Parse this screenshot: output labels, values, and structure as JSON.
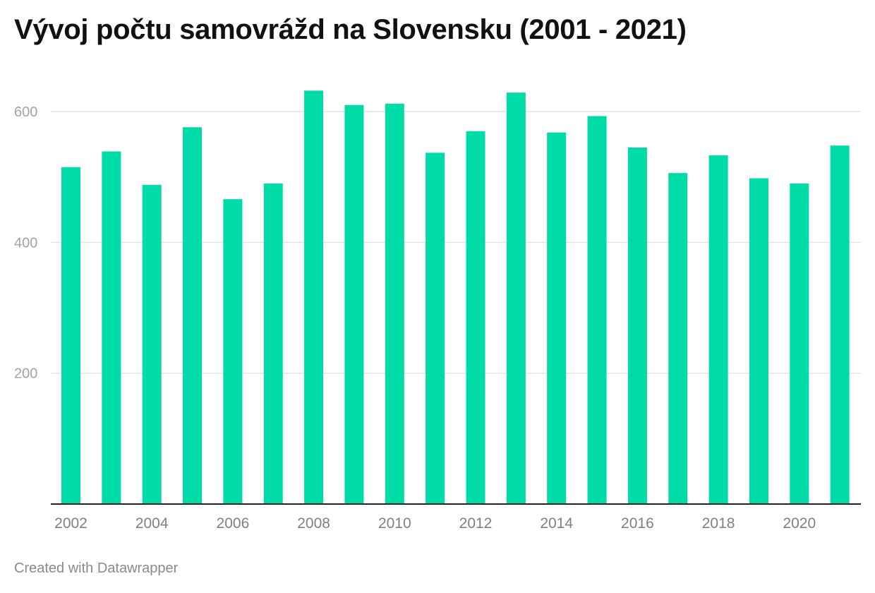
{
  "title": "Vývoj počtu samovrážd na Slovensku (2001 - 2021)",
  "footer": "Created with Datawrapper",
  "colors": {
    "bar": "#00dba7",
    "grid": "#e4e4e4",
    "axis": "#222222"
  },
  "chart_data": {
    "type": "bar",
    "title": "Vývoj počtu samovrážd na Slovensku (2001 - 2021)",
    "categories": [
      "2002",
      "2003",
      "2004",
      "2005",
      "2006",
      "2007",
      "2008",
      "2009",
      "2010",
      "2011",
      "2012",
      "2013",
      "2014",
      "2015",
      "2016",
      "2017",
      "2018",
      "2019",
      "2020",
      "2021"
    ],
    "values": [
      515,
      539,
      488,
      576,
      466,
      490,
      632,
      610,
      612,
      537,
      570,
      629,
      568,
      593,
      545,
      506,
      533,
      498,
      490,
      548
    ],
    "x_tick_labels": [
      "2002",
      "2004",
      "2006",
      "2008",
      "2010",
      "2012",
      "2014",
      "2016",
      "2018",
      "2020"
    ],
    "y_ticks": [
      200,
      400,
      600
    ],
    "ylim": [
      0,
      650
    ],
    "grid": true,
    "xlabel": "",
    "ylabel": ""
  }
}
